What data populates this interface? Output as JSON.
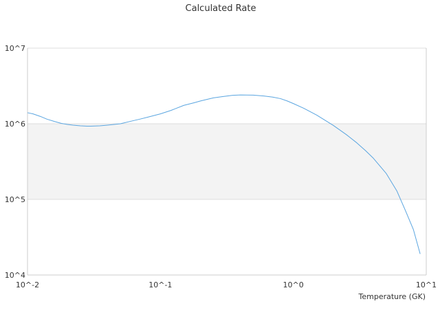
{
  "chart_data": {
    "type": "line",
    "title": "Calculated Rate",
    "xlabel": "Temperature (GK)",
    "ylabel": "",
    "xscale": "log",
    "yscale": "log",
    "xlim": [
      0.01,
      10
    ],
    "ylim": [
      10000,
      10000000
    ],
    "x_ticks": [
      {
        "value": 0.01,
        "label": "10^-2"
      },
      {
        "value": 0.1,
        "label": "10^-1"
      },
      {
        "value": 1,
        "label": "10^0"
      },
      {
        "value": 10,
        "label": "10^1"
      }
    ],
    "y_ticks": [
      {
        "value": 10000,
        "label": "10^4"
      },
      {
        "value": 100000,
        "label": "10^5"
      },
      {
        "value": 1000000,
        "label": "10^6"
      },
      {
        "value": 10000000,
        "label": "10^7"
      }
    ],
    "shaded_band": [
      100000,
      1000000
    ],
    "grid": true,
    "colors": {
      "line": "#5aa5e0",
      "band": "#f3f3f3",
      "grid": "#dddddd",
      "axis": "#cccccc"
    },
    "series": [
      {
        "x": [
          0.01,
          0.011,
          0.0125,
          0.014,
          0.016,
          0.018,
          0.02,
          0.022,
          0.025,
          0.028,
          0.03,
          0.035,
          0.04,
          0.05,
          0.06,
          0.07,
          0.08,
          0.1,
          0.12,
          0.15,
          0.18,
          0.2,
          0.25,
          0.3,
          0.35,
          0.4,
          0.5,
          0.6,
          0.7,
          0.8,
          0.9,
          1.0,
          1.2,
          1.5,
          2.0,
          2.5,
          3.0,
          3.5,
          4.0,
          5.0,
          6.0,
          7.0,
          8.0,
          9.0
        ],
        "y": [
          1400000,
          1350000,
          1250000,
          1150000,
          1070000,
          1010000,
          980000,
          960000,
          940000,
          930000,
          930000,
          940000,
          960000,
          1000000,
          1080000,
          1150000,
          1220000,
          1350000,
          1500000,
          1750000,
          1900000,
          2000000,
          2200000,
          2300000,
          2380000,
          2400000,
          2390000,
          2330000,
          2250000,
          2150000,
          2000000,
          1850000,
          1600000,
          1300000,
          950000,
          720000,
          560000,
          440000,
          350000,
          220000,
          130000,
          70000,
          40000,
          19000
        ]
      }
    ]
  }
}
